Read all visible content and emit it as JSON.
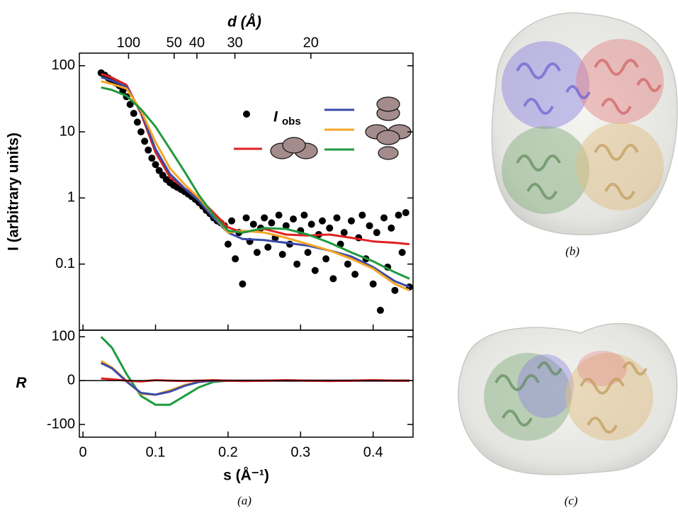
{
  "chart_data": [
    {
      "type": "scatter",
      "top_xlabel": "d (Å)",
      "ylabel": "I (arbitrary units)",
      "xlim": [
        -0.005,
        0.455
      ],
      "ylim": [
        0.01,
        155
      ],
      "log_y": true,
      "xticks": [
        0,
        0.1,
        0.2,
        0.3,
        0.4
      ],
      "yticks": [
        0.1,
        1,
        10,
        100
      ],
      "x2ticks": [
        100,
        50,
        40,
        30,
        20
      ],
      "observed": {
        "name": "I",
        "subscript": "obs",
        "color": "#000000",
        "x": [
          0.025,
          0.03,
          0.035,
          0.04,
          0.045,
          0.05,
          0.055,
          0.06,
          0.065,
          0.07,
          0.075,
          0.08,
          0.085,
          0.09,
          0.095,
          0.1,
          0.105,
          0.11,
          0.115,
          0.12,
          0.125,
          0.13,
          0.135,
          0.14,
          0.145,
          0.15,
          0.155,
          0.16,
          0.165,
          0.17,
          0.175,
          0.18,
          0.185,
          0.19,
          0.195,
          0.2,
          0.205,
          0.21,
          0.215,
          0.22,
          0.225,
          0.23,
          0.235,
          0.24,
          0.245,
          0.25,
          0.255,
          0.26,
          0.265,
          0.27,
          0.275,
          0.28,
          0.285,
          0.29,
          0.295,
          0.3,
          0.305,
          0.31,
          0.315,
          0.32,
          0.325,
          0.33,
          0.335,
          0.34,
          0.345,
          0.35,
          0.355,
          0.36,
          0.365,
          0.37,
          0.375,
          0.38,
          0.385,
          0.39,
          0.395,
          0.4,
          0.405,
          0.41,
          0.415,
          0.42,
          0.425,
          0.43,
          0.435,
          0.44,
          0.445,
          0.45
        ],
        "values": [
          78,
          72,
          65,
          60,
          55,
          50,
          42,
          34,
          26,
          19,
          14,
          10,
          7.2,
          5.3,
          4.0,
          3.2,
          2.6,
          2.2,
          1.9,
          1.7,
          1.55,
          1.45,
          1.35,
          1.25,
          1.15,
          1.05,
          0.95,
          0.85,
          0.75,
          0.65,
          0.58,
          0.5,
          0.45,
          0.42,
          0.38,
          0.2,
          0.45,
          0.12,
          0.3,
          0.05,
          0.5,
          0.22,
          0.4,
          0.15,
          0.35,
          0.5,
          0.18,
          0.42,
          0.25,
          0.55,
          0.14,
          0.38,
          0.2,
          0.48,
          0.1,
          0.32,
          0.55,
          0.15,
          0.4,
          0.08,
          0.28,
          0.45,
          0.12,
          0.35,
          0.06,
          0.5,
          0.2,
          0.3,
          0.1,
          0.45,
          0.07,
          0.25,
          0.55,
          0.12,
          0.38,
          0.05,
          0.3,
          0.02,
          0.5,
          0.09,
          0.35,
          0.04,
          0.55,
          0.15,
          0.6,
          0.045
        ]
      },
      "x": [
        0.025,
        0.04,
        0.06,
        0.08,
        0.1,
        0.12,
        0.14,
        0.16,
        0.18,
        0.2,
        0.22,
        0.25,
        0.28,
        0.31,
        0.34,
        0.37,
        0.4,
        0.43,
        0.45
      ],
      "series": [
        {
          "color": "#e02020",
          "values": [
            75,
            66,
            51,
            19,
            4.9,
            2.05,
            1.4,
            1.0,
            0.6,
            0.36,
            0.3,
            0.34,
            0.28,
            0.27,
            0.28,
            0.25,
            0.22,
            0.21,
            0.2
          ]
        },
        {
          "color": "#3a4aa8",
          "values": [
            67,
            60,
            48,
            20,
            5.5,
            2.3,
            1.4,
            0.9,
            0.5,
            0.3,
            0.24,
            0.23,
            0.21,
            0.19,
            0.16,
            0.13,
            0.09,
            0.055,
            0.045
          ]
        },
        {
          "color": "#f5a623",
          "values": [
            58,
            53,
            45,
            21,
            7,
            2.8,
            1.6,
            1.0,
            0.55,
            0.3,
            0.32,
            0.3,
            0.25,
            0.2,
            0.16,
            0.12,
            0.085,
            0.05,
            0.04
          ]
        },
        {
          "color": "#1f9a3e",
          "values": [
            47,
            43,
            35,
            22,
            12,
            5.5,
            2.5,
            1.1,
            0.55,
            0.32,
            0.3,
            0.35,
            0.34,
            0.28,
            0.21,
            0.15,
            0.11,
            0.075,
            0.06
          ]
        }
      ]
    },
    {
      "type": "line",
      "xlabel": "s (Å⁻¹)",
      "ylabel": "R",
      "xlim": [
        -0.005,
        0.455
      ],
      "ylim": [
        -129,
        115
      ],
      "xticks": [
        0,
        0.1,
        0.2,
        0.3,
        0.4
      ],
      "yticks": [
        100,
        0,
        -100
      ],
      "x": [
        0.025,
        0.04,
        0.06,
        0.08,
        0.1,
        0.12,
        0.14,
        0.16,
        0.18,
        0.2,
        0.22,
        0.25,
        0.28,
        0.31,
        0.34,
        0.37,
        0.4,
        0.43,
        0.45
      ],
      "series": [
        {
          "color": "#1f9a3e",
          "values": [
            100,
            75,
            15,
            -35,
            -55,
            -55,
            -35,
            -15,
            -3,
            0,
            0,
            0,
            0,
            0,
            0,
            0,
            0,
            0,
            0
          ]
        },
        {
          "color": "#f5a623",
          "values": [
            45,
            30,
            0,
            -30,
            -32,
            -22,
            -10,
            -3,
            0,
            0,
            0,
            0,
            0,
            0,
            0,
            0,
            0,
            0,
            0
          ]
        },
        {
          "color": "#3a4aa8",
          "values": [
            40,
            28,
            -2,
            -28,
            -32,
            -25,
            -12,
            -3,
            0,
            0,
            0,
            0,
            0,
            0,
            0,
            0,
            0,
            0,
            0
          ]
        },
        {
          "color": "#e02020",
          "values": [
            5,
            3,
            0,
            -2,
            1,
            0,
            -1,
            0,
            1,
            0,
            -1,
            0,
            1,
            0,
            -1,
            0,
            1,
            0,
            0
          ]
        }
      ]
    }
  ],
  "panel_labels": {
    "a": "(a)",
    "b": "(b)",
    "c": "(c)"
  }
}
